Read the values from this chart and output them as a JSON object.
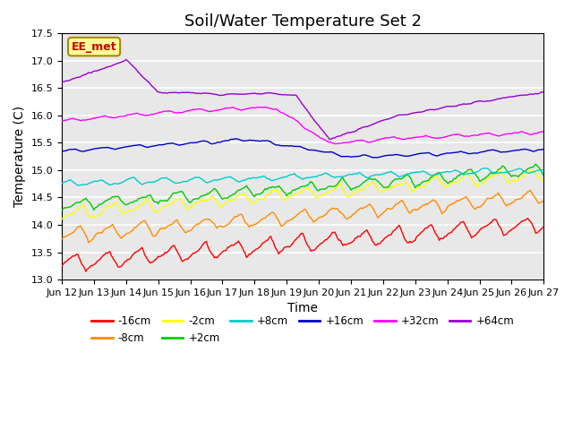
{
  "title": "Soil/Water Temperature Set 2",
  "xlabel": "Time",
  "ylabel": "Temperature (C)",
  "ylim": [
    13.0,
    17.5
  ],
  "xlim": [
    0,
    360
  ],
  "x_tick_labels": [
    "Jun 12",
    "Jun 13",
    "Jun 14",
    "Jun 15",
    "Jun 16",
    "Jun 17",
    "Jun 18",
    "Jun 19",
    "Jun 20",
    "Jun 21",
    "Jun 22",
    "Jun 23",
    "Jun 24",
    "Jun 25",
    "Jun 26",
    "Jun 27"
  ],
  "x_tick_positions": [
    0,
    24,
    48,
    72,
    96,
    120,
    144,
    168,
    192,
    216,
    240,
    264,
    288,
    312,
    336,
    360
  ],
  "series_names": [
    "-16cm",
    "-8cm",
    "-2cm",
    "+2cm",
    "+8cm",
    "+16cm",
    "+32cm",
    "+64cm"
  ],
  "series_colors": [
    "#FF0000",
    "#FF8C00",
    "#FFFF00",
    "#00CC00",
    "#00CCCC",
    "#0000CC",
    "#FF00FF",
    "#9900CC"
  ],
  "annotation_text": "EE_met",
  "annotation_color": "#CC0000",
  "annotation_bg": "#FFFF99",
  "background_color": "#E8E8E8",
  "grid_color": "#FFFFFF",
  "title_fontsize": 13,
  "label_fontsize": 10,
  "tick_fontsize": 8,
  "yticks": [
    13.0,
    13.5,
    14.0,
    14.5,
    15.0,
    15.5,
    16.0,
    16.5,
    17.0,
    17.5
  ]
}
